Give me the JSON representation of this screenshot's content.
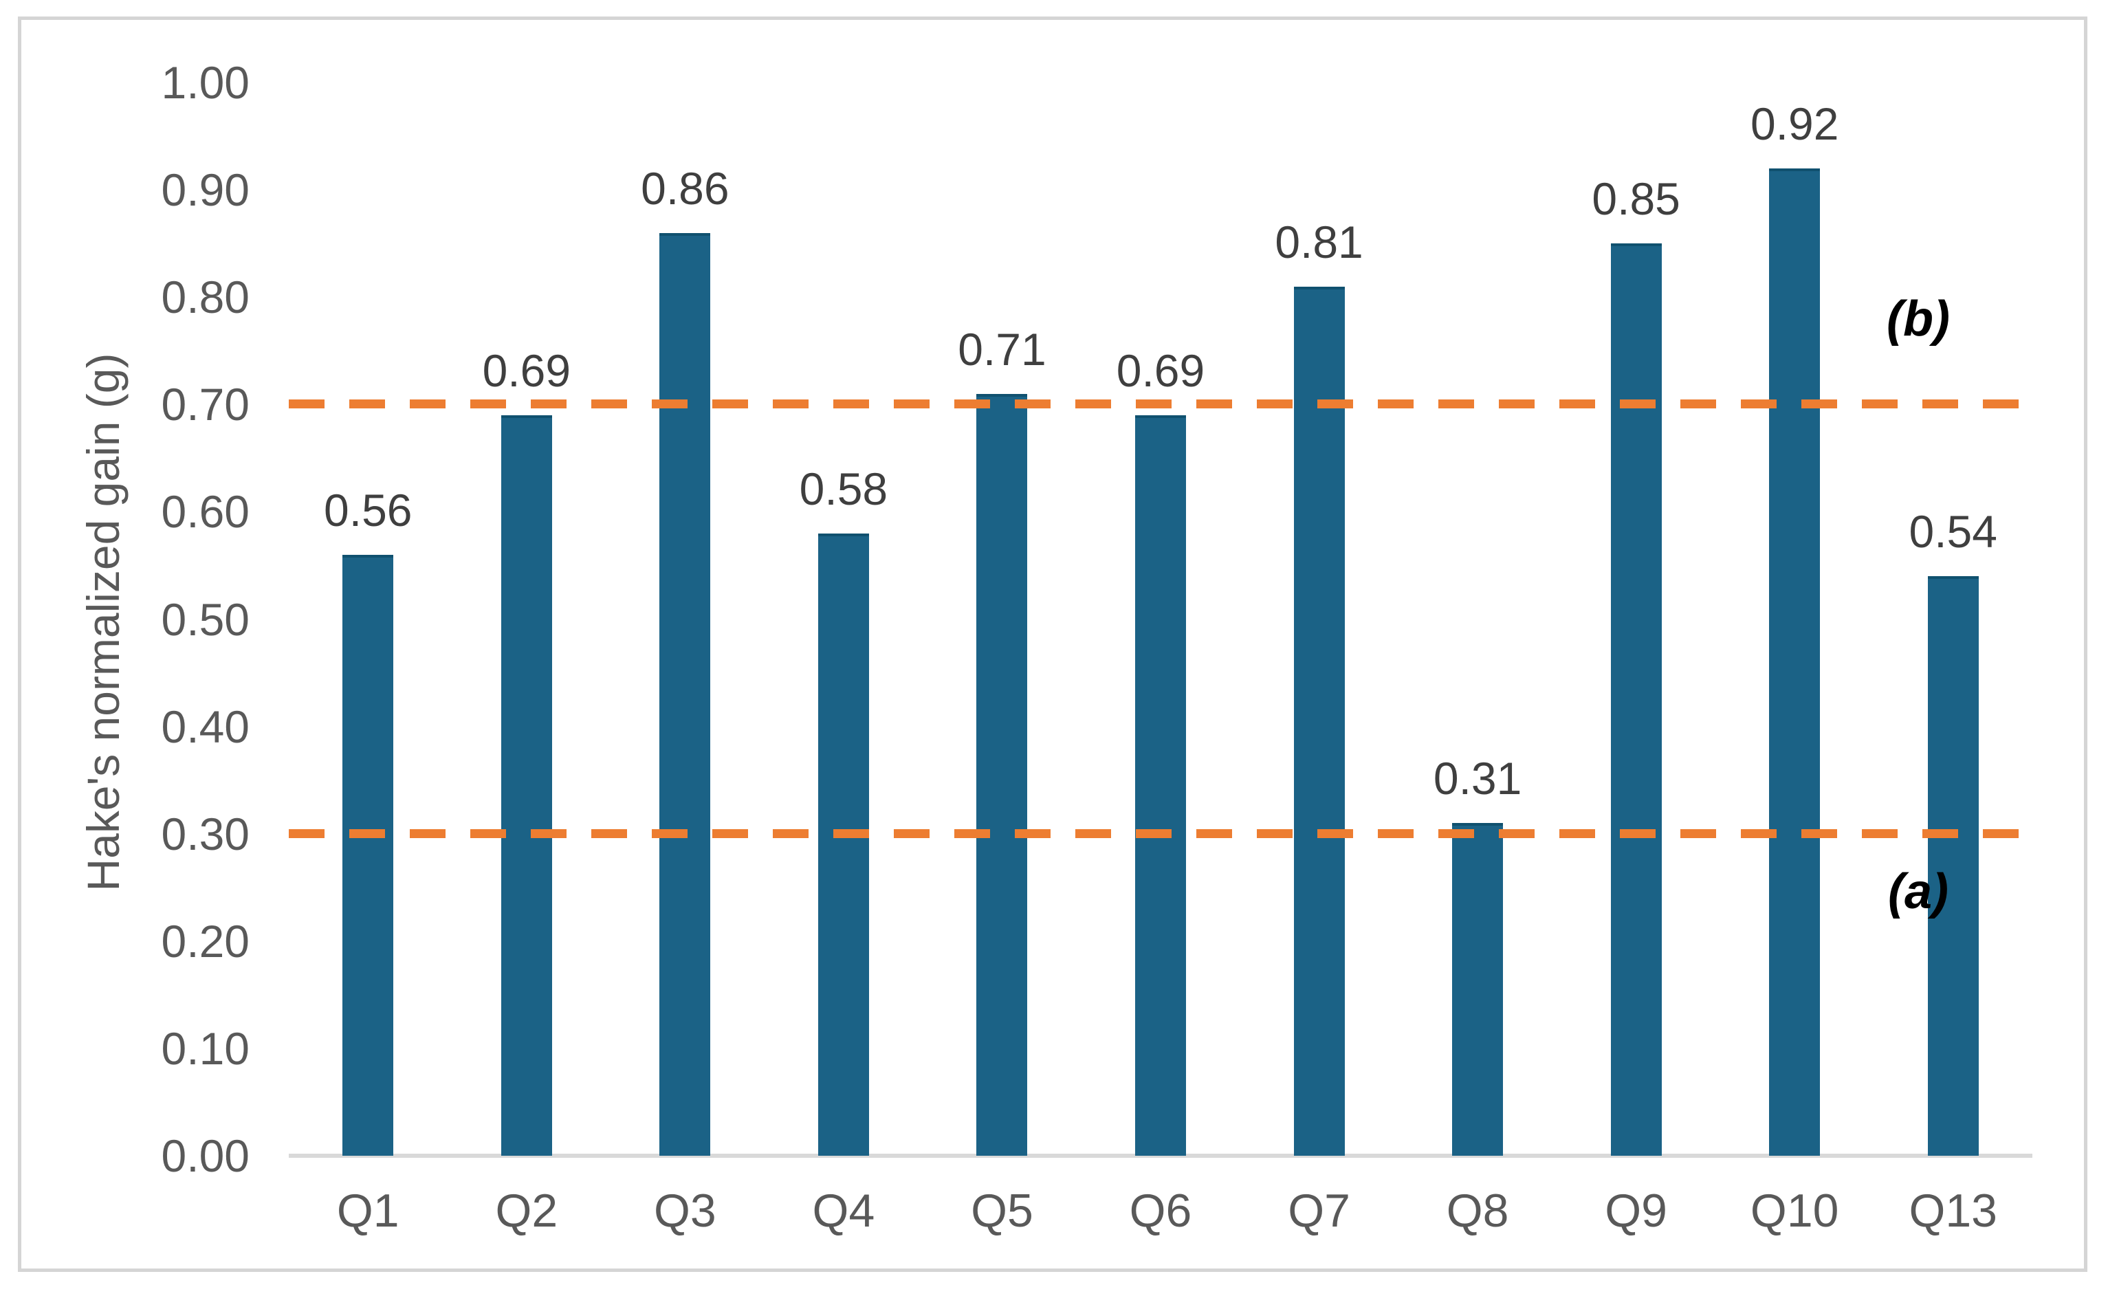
{
  "figure": {
    "background_color": "#FFFFFF",
    "frame_border_color": "#D5D5D5",
    "axis_line_color": "#D9D9D9",
    "tick_label_color": "#595959",
    "data_label_color": "#3F3F3F"
  },
  "chart_data": {
    "type": "bar",
    "title": "",
    "xlabel": "",
    "ylabel": "Hake's normalized gain (g)",
    "categories": [
      "Q1",
      "Q2",
      "Q3",
      "Q4",
      "Q5",
      "Q6",
      "Q7",
      "Q8",
      "Q9",
      "Q10",
      "Q13"
    ],
    "values": [
      0.56,
      0.69,
      0.86,
      0.58,
      0.71,
      0.69,
      0.81,
      0.31,
      0.85,
      0.92,
      0.54
    ],
    "data_labels": [
      "0.56",
      "0.69",
      "0.86",
      "0.58",
      "0.71",
      "0.69",
      "0.81",
      "0.31",
      "0.85",
      "0.92",
      "0.54"
    ],
    "ylim": [
      0,
      1
    ],
    "yticks": [
      "1.00",
      "0.90",
      "0.80",
      "0.70",
      "0.60",
      "0.50",
      "0.40",
      "0.30",
      "0.20",
      "0.10",
      "0.00"
    ],
    "grid": false,
    "legend": "none",
    "bar_color": "#1B6286",
    "reference_lines": [
      {
        "value": 0.7,
        "label": "(b)",
        "color": "#ED7D31",
        "style": "dashed",
        "label_position": "above"
      },
      {
        "value": 0.3,
        "label": "(a)",
        "color": "#ED7D31",
        "style": "dashed",
        "label_position": "below"
      }
    ]
  }
}
